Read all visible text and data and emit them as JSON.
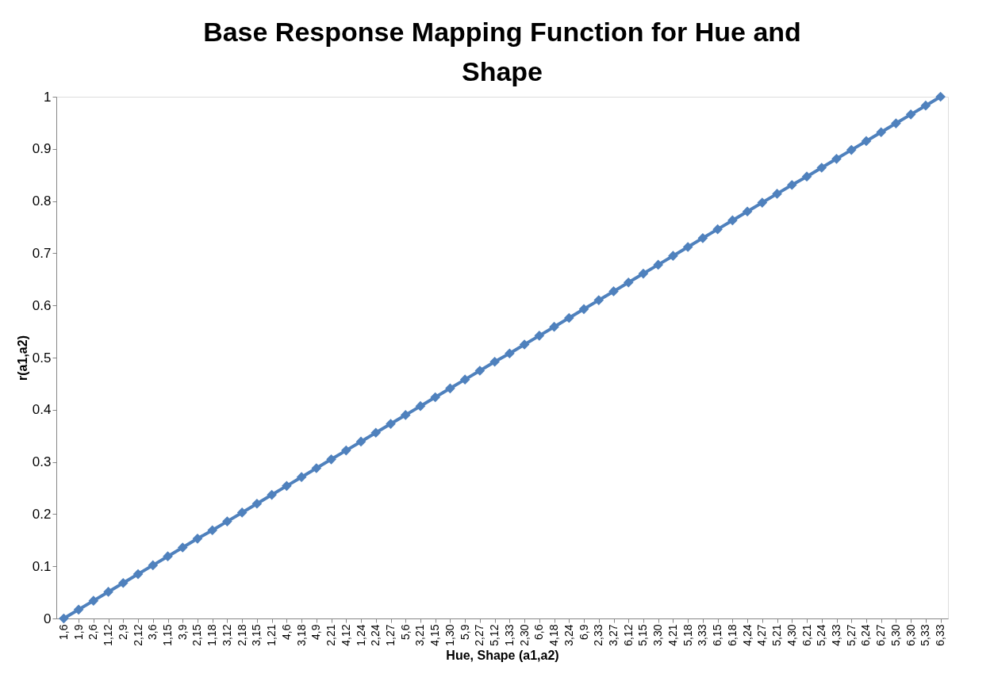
{
  "chart_data": {
    "type": "line",
    "title": "Base Response Mapping Function for Hue and Shape",
    "xlabel": "Hue, Shape (a1,a2)",
    "ylabel": "r(a1,a2)",
    "categories": [
      "1,6",
      "1,9",
      "2,6",
      "1,12",
      "2,9",
      "2,12",
      "3,6",
      "1,15",
      "3,9",
      "2,15",
      "1,18",
      "3,12",
      "2,18",
      "3,15",
      "1,21",
      "4,6",
      "3,18",
      "4,9",
      "2,21",
      "4,12",
      "1,24",
      "2,24",
      "1,27",
      "5,6",
      "3,21",
      "4,15",
      "1,30",
      "5,9",
      "2,27",
      "5,12",
      "1,33",
      "2,30",
      "6,6",
      "4,18",
      "3,24",
      "6,9",
      "2,33",
      "3,27",
      "6,12",
      "5,15",
      "3,30",
      "4,21",
      "5,18",
      "3,33",
      "6,15",
      "6,18",
      "4,24",
      "4,27",
      "5,21",
      "4,30",
      "6,21",
      "5,24",
      "4,33",
      "5,27",
      "6,24",
      "6,27",
      "5,30",
      "6,30",
      "5,33",
      "6,33"
    ],
    "series": [
      {
        "color": "#4f81bd",
        "values": [
          0,
          0.017,
          0.034,
          0.051,
          0.068,
          0.085,
          0.102,
          0.119,
          0.136,
          0.153,
          0.169,
          0.186,
          0.203,
          0.22,
          0.237,
          0.254,
          0.271,
          0.288,
          0.305,
          0.322,
          0.339,
          0.356,
          0.373,
          0.39,
          0.407,
          0.424,
          0.441,
          0.458,
          0.475,
          0.492,
          0.508,
          0.525,
          0.542,
          0.559,
          0.576,
          0.593,
          0.61,
          0.627,
          0.644,
          0.661,
          0.678,
          0.695,
          0.712,
          0.729,
          0.746,
          0.763,
          0.78,
          0.797,
          0.814,
          0.831,
          0.847,
          0.864,
          0.881,
          0.898,
          0.915,
          0.932,
          0.949,
          0.966,
          0.983,
          1
        ]
      }
    ],
    "ylim": [
      0,
      1
    ],
    "yticks": [
      0,
      0.1,
      0.2,
      0.3,
      0.4,
      0.5,
      0.6,
      0.7,
      0.8,
      0.9,
      1
    ],
    "grid": false,
    "legend": false,
    "marker": "diamond",
    "line_style": "solid"
  }
}
